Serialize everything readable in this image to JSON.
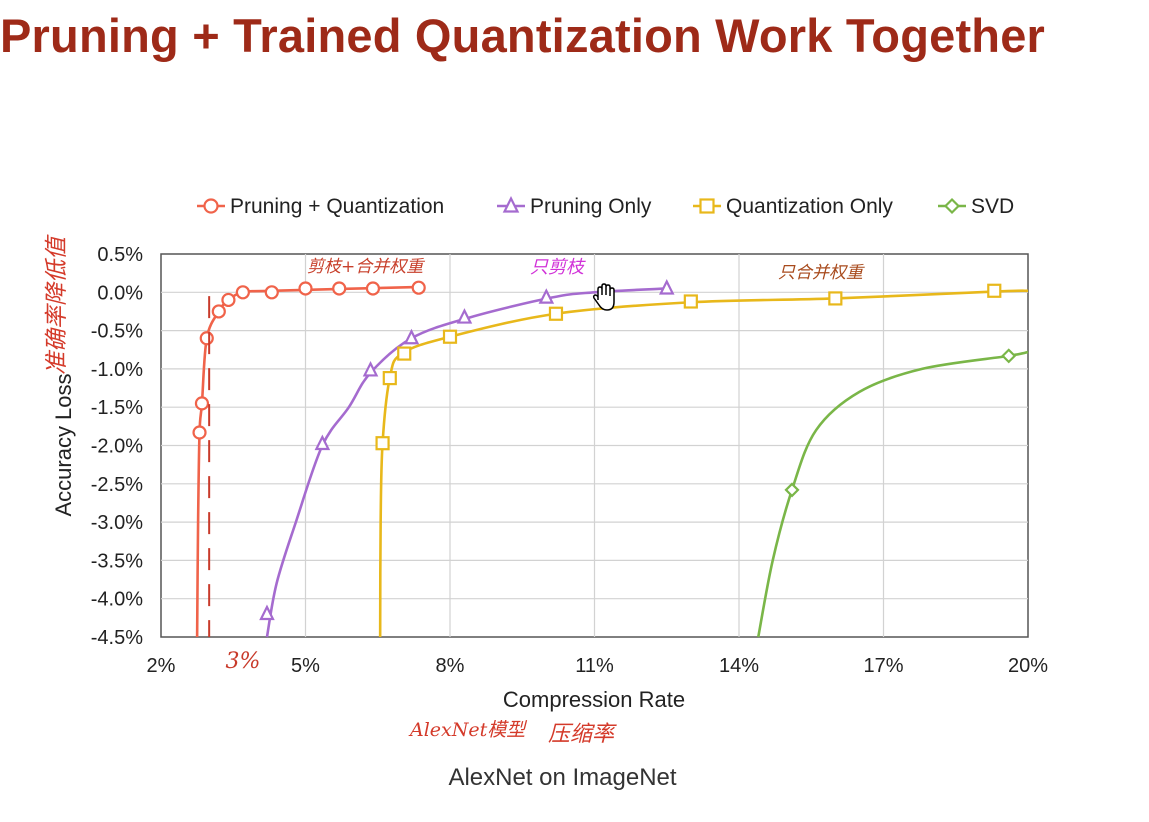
{
  "slide": {
    "title": "Pruning + Trained Quantization Work Together",
    "caption": "AlexNet on ImageNet"
  },
  "annotations": {
    "y_note": "准确率降低值",
    "x_note_model": "AlexNet模型",
    "x_note_rate": "压缩率",
    "pq_note": "剪枝+合并权重",
    "po_note": "只剪枝",
    "qo_note": "只合并权重",
    "marker_label": "3%",
    "marker_x": 3
  },
  "chart_data": {
    "type": "line",
    "title": "",
    "xlabel": "Compression Rate",
    "ylabel": "Accuracy Loss",
    "xlim": [
      2,
      20
    ],
    "ylim": [
      -4.5,
      0.5
    ],
    "x_ticks": [
      2,
      5,
      8,
      11,
      14,
      17,
      20
    ],
    "x_tick_labels": [
      "2%",
      "5%",
      "8%",
      "11%",
      "14%",
      "17%",
      "20%"
    ],
    "y_ticks": [
      0.5,
      0.0,
      -0.5,
      -1.0,
      -1.5,
      -2.0,
      -2.5,
      -3.0,
      -3.5,
      -4.0,
      -4.5
    ],
    "y_tick_labels": [
      "0.5%",
      "0.0%",
      "-0.5%",
      "-1.0%",
      "-1.5%",
      "-2.0%",
      "-2.5%",
      "-3.0%",
      "-3.5%",
      "-4.0%",
      "-4.5%"
    ],
    "grid": true,
    "legend_position": "top",
    "series": [
      {
        "name": "Pruning + Quantization",
        "color": "#f0634a",
        "marker": "circle",
        "curve": [
          [
            2.75,
            -4.5
          ],
          [
            2.77,
            -3.0
          ],
          [
            2.8,
            -1.83
          ],
          [
            2.85,
            -1.45
          ],
          [
            2.95,
            -0.6
          ],
          [
            3.2,
            -0.25
          ],
          [
            3.4,
            -0.1
          ],
          [
            3.7,
            0.0
          ],
          [
            4.3,
            0.02
          ],
          [
            7.4,
            0.07
          ]
        ],
        "points": [
          [
            2.8,
            -1.83
          ],
          [
            2.85,
            -1.45
          ],
          [
            2.95,
            -0.6
          ],
          [
            3.2,
            -0.25
          ],
          [
            3.4,
            -0.1
          ],
          [
            3.7,
            0.0
          ],
          [
            4.3,
            0.0
          ],
          [
            5.0,
            0.05
          ],
          [
            5.7,
            0.05
          ],
          [
            6.4,
            0.05
          ],
          [
            7.35,
            0.06
          ]
        ]
      },
      {
        "name": "Pruning Only",
        "color": "#a56bcf",
        "marker": "triangle",
        "curve": [
          [
            4.2,
            -4.5
          ],
          [
            4.4,
            -3.8
          ],
          [
            4.8,
            -3.0
          ],
          [
            5.35,
            -2.0
          ],
          [
            5.9,
            -1.5
          ],
          [
            6.35,
            -1.05
          ],
          [
            7.2,
            -0.6
          ],
          [
            8.4,
            -0.33
          ],
          [
            10.1,
            -0.07
          ],
          [
            11.0,
            0.0
          ],
          [
            12.5,
            0.05
          ]
        ],
        "points": [
          [
            4.2,
            -4.2
          ],
          [
            5.35,
            -1.98
          ],
          [
            6.35,
            -1.02
          ],
          [
            7.2,
            -0.6
          ],
          [
            8.3,
            -0.33
          ],
          [
            10.0,
            -0.07
          ],
          [
            12.5,
            0.05
          ]
        ]
      },
      {
        "name": "Quantization Only",
        "color": "#e8b81b",
        "marker": "square",
        "curve": [
          [
            6.55,
            -4.5
          ],
          [
            6.56,
            -3.0
          ],
          [
            6.6,
            -1.97
          ],
          [
            6.75,
            -1.12
          ],
          [
            7.0,
            -0.8
          ],
          [
            8.0,
            -0.58
          ],
          [
            10.2,
            -0.28
          ],
          [
            13.0,
            -0.13
          ],
          [
            16.0,
            -0.08
          ],
          [
            19.3,
            0.01
          ],
          [
            20.0,
            0.02
          ]
        ],
        "points": [
          [
            6.6,
            -1.97
          ],
          [
            6.75,
            -1.12
          ],
          [
            7.05,
            -0.8
          ],
          [
            8.0,
            -0.58
          ],
          [
            10.2,
            -0.28
          ],
          [
            13.0,
            -0.12
          ],
          [
            16.0,
            -0.08
          ],
          [
            19.3,
            0.02
          ]
        ]
      },
      {
        "name": "SVD",
        "color": "#7ab648",
        "marker": "diamond",
        "curve": [
          [
            14.4,
            -4.5
          ],
          [
            14.7,
            -3.5
          ],
          [
            15.1,
            -2.58
          ],
          [
            15.6,
            -1.8
          ],
          [
            16.5,
            -1.3
          ],
          [
            17.8,
            -1.0
          ],
          [
            19.6,
            -0.83
          ],
          [
            20.0,
            -0.78
          ]
        ],
        "points": [
          [
            15.1,
            -2.58
          ],
          [
            19.6,
            -0.83
          ]
        ]
      }
    ]
  }
}
